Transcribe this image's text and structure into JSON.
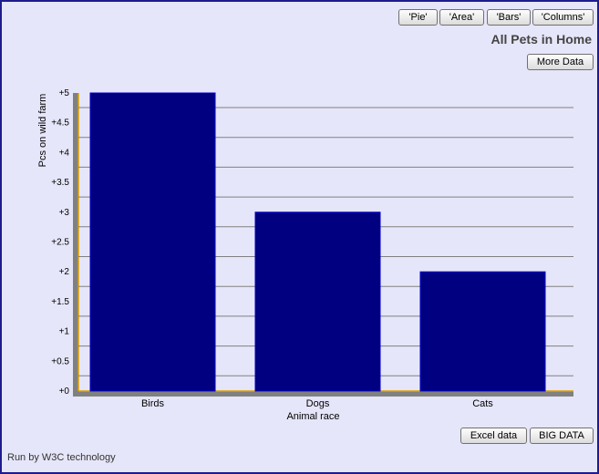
{
  "toolbar": {
    "buttons": [
      {
        "label": "'Pie'"
      },
      {
        "label": "'Area'"
      },
      {
        "label": "'Bars'"
      },
      {
        "label": "'Columns'"
      }
    ],
    "more_data_label": "More Data",
    "excel_label": "Excel data",
    "big_data_label": "BIG DATA"
  },
  "footer": {
    "text": "Run by W3C technology"
  },
  "colors": {
    "bar": "#000080",
    "background": "#e6e6fa",
    "axis": "#808080",
    "axis_edge": "#e0a000",
    "frame": "#1d1d8f"
  },
  "chart_data": {
    "type": "bar",
    "title": "All Pets in Home",
    "xlabel": "Animal race",
    "ylabel": "Pcs on wild farm",
    "categories": [
      "Birds",
      "Dogs",
      "Cats"
    ],
    "values": [
      5,
      3,
      2
    ],
    "ylim": [
      0,
      5
    ],
    "yticks": [
      "+0",
      "+0.5",
      "+1",
      "+1.5",
      "+2",
      "+2.5",
      "+3",
      "+3.5",
      "+4",
      "+4.5",
      "+5"
    ],
    "grid": true
  }
}
